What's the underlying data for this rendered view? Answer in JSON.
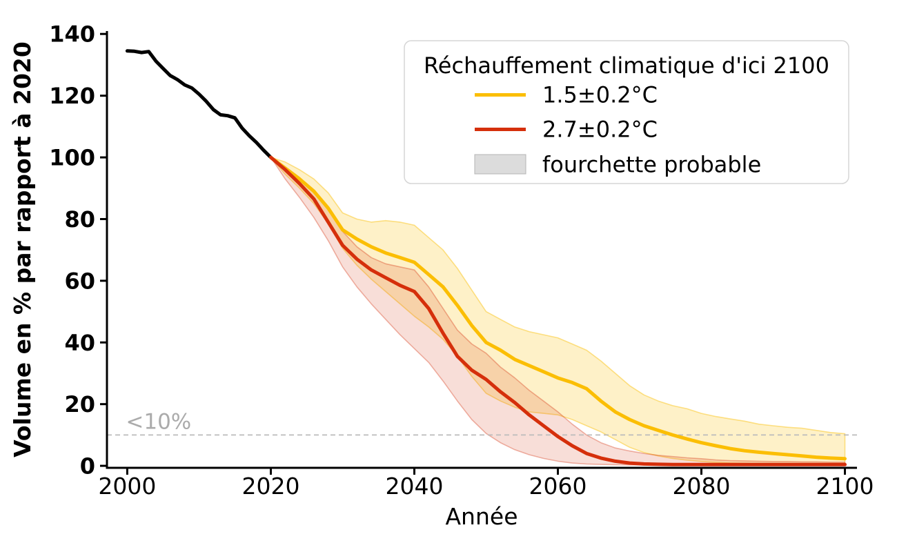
{
  "chart_data": {
    "type": "line",
    "title": "",
    "xlabel": "Année",
    "ylabel": "Volume en % par rapport à 2020",
    "xlim": [
      1997.17,
      2101.68
    ],
    "ylim": [
      -0.65,
      140.95
    ],
    "xticks": [
      2000,
      2020,
      2040,
      2060,
      2080,
      2100
    ],
    "yticks": [
      0,
      20,
      40,
      60,
      80,
      100,
      120,
      140
    ],
    "grid": false,
    "threshold": {
      "value": 10,
      "label": "<10%",
      "line_color": "#bbbbbb",
      "label_color": "#ababab"
    },
    "series": [
      {
        "name": "historique",
        "color": "#000000",
        "x": [
          2000,
          2001,
          2002,
          2003,
          2004,
          2005,
          2006,
          2007,
          2008,
          2009,
          2010,
          2011,
          2012,
          2013,
          2014,
          2015,
          2016,
          2017,
          2018,
          2019,
          2020
        ],
        "y": [
          134.5,
          134.4,
          134.0,
          134.3,
          131.2,
          128.8,
          126.5,
          125.2,
          123.5,
          122.5,
          120.5,
          118.2,
          115.5,
          113.8,
          113.5,
          112.8,
          109.5,
          107.0,
          104.8,
          102.3,
          100.0
        ]
      },
      {
        "name": "rechauffement-1.5C",
        "color": "#FBBE04",
        "x": [
          2020,
          2022,
          2024,
          2026,
          2028,
          2030,
          2032,
          2034,
          2036,
          2038,
          2040,
          2042,
          2044,
          2046,
          2048,
          2050,
          2052,
          2054,
          2056,
          2058,
          2060,
          2062,
          2064,
          2066,
          2068,
          2070,
          2072,
          2074,
          2076,
          2078,
          2080,
          2082,
          2084,
          2086,
          2088,
          2090,
          2092,
          2094,
          2096,
          2098,
          2100
        ],
        "y": [
          100,
          96.5,
          93,
          89,
          83.5,
          76.5,
          73.5,
          71,
          69,
          67.5,
          66,
          62,
          58,
          52,
          45.5,
          40,
          37.5,
          34.5,
          32.5,
          30.5,
          28.5,
          27,
          25,
          21,
          17.5,
          15,
          13,
          11.5,
          10,
          8.7,
          7.5,
          6.5,
          5.6,
          4.9,
          4.4,
          4.0,
          3.6,
          3.2,
          2.8,
          2.5,
          2.3
        ],
        "band": {
          "fill_opacity": 0.22,
          "edge_opacity": 0.45,
          "hi": [
            100,
            98.5,
            96,
            93,
            88.5,
            82,
            80,
            79,
            79.5,
            79,
            78,
            74,
            70,
            64,
            57,
            50,
            47.5,
            45,
            43.5,
            42.5,
            41.5,
            39.5,
            37.5,
            34,
            30,
            26,
            23,
            21,
            19.5,
            18.5,
            17,
            16,
            15.2,
            14.5,
            13.5,
            13,
            12.5,
            12.2,
            11.5,
            10.8,
            10.4
          ],
          "lo": [
            100,
            94.5,
            90,
            85,
            78.5,
            70.5,
            65,
            60.5,
            56.5,
            52.5,
            48.5,
            45,
            41,
            35.5,
            29,
            23.5,
            21,
            19,
            17.5,
            17,
            16.5,
            15,
            13,
            11,
            8.5,
            6,
            4.3,
            3.2,
            2.4,
            1.8,
            1.4,
            1.1,
            0.9,
            0.8,
            0.7,
            0.6,
            0.5,
            0.5,
            0.4,
            0.4,
            0.4
          ]
        }
      },
      {
        "name": "rechauffement-2.7C",
        "color": "#D52F0B",
        "x": [
          2020,
          2022,
          2024,
          2026,
          2028,
          2030,
          2032,
          2034,
          2036,
          2038,
          2040,
          2042,
          2044,
          2046,
          2048,
          2050,
          2052,
          2054,
          2056,
          2058,
          2060,
          2062,
          2064,
          2066,
          2068,
          2070,
          2072,
          2074,
          2076,
          2078,
          2080,
          2082,
          2084,
          2086,
          2088,
          2090,
          2092,
          2094,
          2096,
          2098,
          2100
        ],
        "y": [
          100,
          96,
          91.5,
          86.5,
          79,
          71.5,
          67,
          63.5,
          61,
          58.5,
          56.5,
          51,
          43,
          35.5,
          31,
          28,
          24,
          20.5,
          16.5,
          13,
          9.5,
          6.5,
          4,
          2.5,
          1.5,
          0.9,
          0.6,
          0.5,
          0.4,
          0.4,
          0.4,
          0.4,
          0.4,
          0.4,
          0.4,
          0.4,
          0.4,
          0.4,
          0.4,
          0.4,
          0.4
        ],
        "band": {
          "fill_opacity": 0.16,
          "edge_opacity": 0.35,
          "hi": [
            100,
            97,
            93.5,
            89,
            83,
            76,
            71,
            67.5,
            65.5,
            64.5,
            63.5,
            58,
            51,
            44,
            39.5,
            36.5,
            32,
            28.5,
            24.5,
            21,
            17.5,
            13.5,
            10,
            7.5,
            5.8,
            4.8,
            4,
            3.4,
            3,
            2.6,
            2.3,
            1.9,
            1.7,
            1.6,
            1.5,
            1.4,
            1.4,
            1.3,
            1.3,
            1.2,
            1.2
          ],
          "lo": [
            100,
            93,
            87,
            80.5,
            73,
            64.5,
            58,
            52.5,
            47.5,
            42.5,
            38,
            33.5,
            27.5,
            21,
            15,
            10.5,
            7.5,
            5.2,
            3.6,
            2.4,
            1.5,
            0.9,
            0.6,
            0.45,
            0.35,
            0.3,
            0.3,
            0.3,
            0.3,
            0.3,
            0.3,
            0.3,
            0.3,
            0.3,
            0.3,
            0.3,
            0.3,
            0.3,
            0.3,
            0.3,
            0.3
          ]
        }
      }
    ],
    "legend": {
      "title": "Réchauffement climatique d'ici 2100",
      "entries": [
        {
          "label": "1.5±0.2°C",
          "type": "line",
          "color": "#FBBE04"
        },
        {
          "label": "2.7±0.2°C",
          "type": "line",
          "color": "#D52F0B"
        },
        {
          "label": "fourchette probable",
          "type": "patch",
          "color": "#DCDCDC"
        }
      ]
    }
  }
}
